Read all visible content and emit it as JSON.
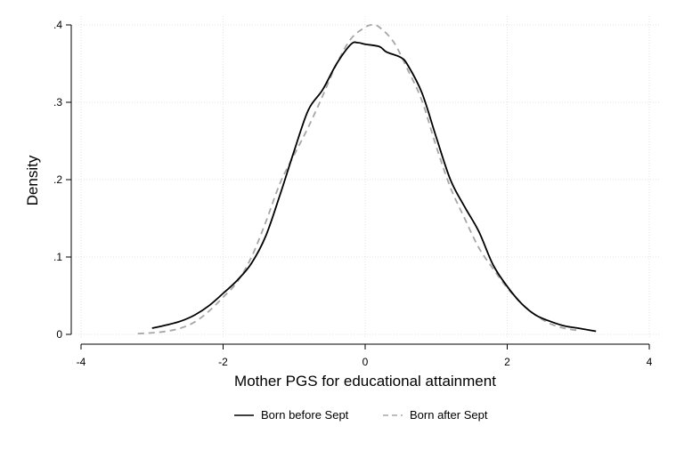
{
  "chart_data": {
    "type": "line",
    "title": "",
    "xlabel": "Mother PGS for educational attainment",
    "ylabel": "Density",
    "xlim": [
      -4,
      4
    ],
    "ylim": [
      0,
      0.4
    ],
    "x_ticks": [
      -4,
      -2,
      0,
      2,
      4
    ],
    "x_tick_labels": [
      "-4",
      "-2",
      "0",
      "2",
      "4"
    ],
    "y_ticks": [
      0,
      0.1,
      0.2,
      0.3,
      0.4
    ],
    "y_tick_labels": [
      "0",
      ".1",
      ".2",
      ".3",
      ".4"
    ],
    "grid": true,
    "legend_position": "bottom",
    "series": [
      {
        "name": "Born before Sept",
        "color": "#000000",
        "dash": "solid",
        "points": [
          [
            -3.0,
            0.008
          ],
          [
            -2.8,
            0.012
          ],
          [
            -2.6,
            0.017
          ],
          [
            -2.4,
            0.025
          ],
          [
            -2.2,
            0.037
          ],
          [
            -2.0,
            0.053
          ],
          [
            -1.8,
            0.07
          ],
          [
            -1.6,
            0.092
          ],
          [
            -1.4,
            0.127
          ],
          [
            -1.2,
            0.18
          ],
          [
            -1.0,
            0.237
          ],
          [
            -0.8,
            0.29
          ],
          [
            -0.6,
            0.316
          ],
          [
            -0.4,
            0.35
          ],
          [
            -0.2,
            0.375
          ],
          [
            -0.1,
            0.377
          ],
          [
            0.0,
            0.375
          ],
          [
            0.2,
            0.372
          ],
          [
            0.3,
            0.365
          ],
          [
            0.5,
            0.358
          ],
          [
            0.6,
            0.348
          ],
          [
            0.8,
            0.312
          ],
          [
            1.0,
            0.255
          ],
          [
            1.2,
            0.2
          ],
          [
            1.4,
            0.165
          ],
          [
            1.6,
            0.133
          ],
          [
            1.8,
            0.09
          ],
          [
            2.0,
            0.062
          ],
          [
            2.2,
            0.04
          ],
          [
            2.4,
            0.025
          ],
          [
            2.6,
            0.017
          ],
          [
            2.8,
            0.011
          ],
          [
            3.0,
            0.008
          ],
          [
            3.25,
            0.004
          ]
        ]
      },
      {
        "name": "Born after Sept",
        "color": "#a6a6a6",
        "dash": "dashed",
        "points": [
          [
            -3.2,
            0.001
          ],
          [
            -3.0,
            0.002
          ],
          [
            -2.8,
            0.004
          ],
          [
            -2.6,
            0.008
          ],
          [
            -2.4,
            0.016
          ],
          [
            -2.2,
            0.03
          ],
          [
            -2.0,
            0.048
          ],
          [
            -1.8,
            0.068
          ],
          [
            -1.6,
            0.1
          ],
          [
            -1.4,
            0.145
          ],
          [
            -1.2,
            0.195
          ],
          [
            -1.0,
            0.232
          ],
          [
            -0.8,
            0.268
          ],
          [
            -0.6,
            0.308
          ],
          [
            -0.4,
            0.35
          ],
          [
            -0.2,
            0.382
          ],
          [
            0.0,
            0.397
          ],
          [
            0.1,
            0.4
          ],
          [
            0.2,
            0.397
          ],
          [
            0.4,
            0.378
          ],
          [
            0.6,
            0.342
          ],
          [
            0.8,
            0.302
          ],
          [
            1.0,
            0.243
          ],
          [
            1.2,
            0.19
          ],
          [
            1.4,
            0.15
          ],
          [
            1.6,
            0.112
          ],
          [
            1.8,
            0.085
          ],
          [
            2.0,
            0.06
          ],
          [
            2.2,
            0.04
          ],
          [
            2.4,
            0.025
          ],
          [
            2.6,
            0.014
          ],
          [
            2.8,
            0.008
          ],
          [
            3.0,
            0.005
          ]
        ]
      }
    ]
  }
}
